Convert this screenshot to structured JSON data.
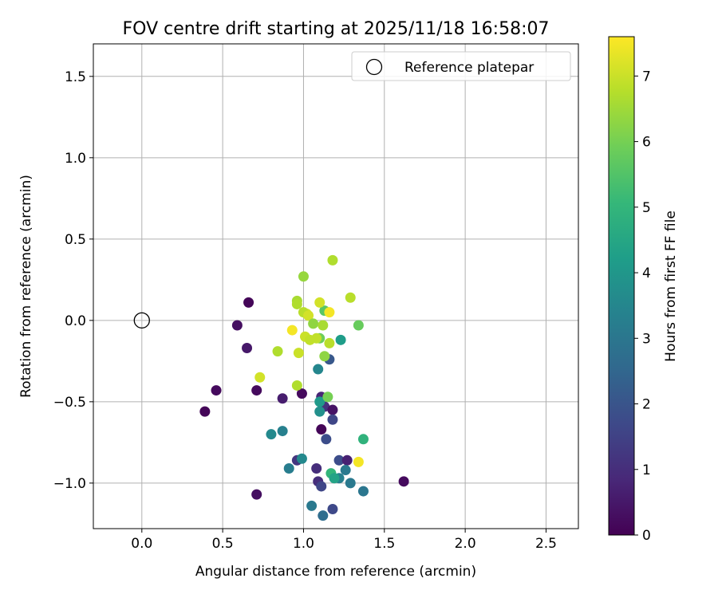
{
  "chart_data": {
    "type": "scatter",
    "title": "FOV centre drift starting at 2025/11/18 16:58:07",
    "xlabel": "Angular distance from reference (arcmin)",
    "ylabel": "Rotation from reference (arcmin)",
    "xlim": [
      -0.3,
      2.7
    ],
    "ylim": [
      -1.28,
      1.7
    ],
    "xticks": [
      0.0,
      0.5,
      1.0,
      1.5,
      2.0,
      2.5
    ],
    "xtick_labels": [
      "0.0",
      "0.5",
      "1.0",
      "1.5",
      "2.0",
      "2.5"
    ],
    "yticks": [
      -1.0,
      -0.5,
      0.0,
      0.5,
      1.0,
      1.5
    ],
    "ytick_labels": [
      "−1.0",
      "−0.5",
      "0.0",
      "0.5",
      "1.0",
      "1.5"
    ],
    "grid": true,
    "legend": {
      "position": "top-right",
      "entries": [
        {
          "label": "Reference platepar",
          "marker": "open-circle"
        }
      ]
    },
    "reference_point": {
      "x": 0.0,
      "y": 0.0
    },
    "colorbar": {
      "label": "Hours from first FF file",
      "min": 0,
      "max": 7.6,
      "colormap": "viridis",
      "ticks": [
        0,
        1,
        2,
        3,
        4,
        5,
        6,
        7
      ],
      "tick_labels": [
        "0",
        "1",
        "2",
        "3",
        "4",
        "5",
        "6",
        "7"
      ]
    },
    "points": [
      {
        "x": 0.66,
        "y": 0.11,
        "h": 0.1
      },
      {
        "x": 0.59,
        "y": -0.03,
        "h": 0.3
      },
      {
        "x": 0.65,
        "y": -0.17,
        "h": 0.5
      },
      {
        "x": 0.46,
        "y": -0.43,
        "h": 0.2
      },
      {
        "x": 0.39,
        "y": -0.56,
        "h": 0.1
      },
      {
        "x": 0.71,
        "y": -0.43,
        "h": 0.2
      },
      {
        "x": 0.87,
        "y": -0.48,
        "h": 0.6
      },
      {
        "x": 0.99,
        "y": -0.45,
        "h": 0.2
      },
      {
        "x": 0.71,
        "y": -1.07,
        "h": 0.3
      },
      {
        "x": 1.62,
        "y": -0.99,
        "h": 0.2
      },
      {
        "x": 1.11,
        "y": -0.67,
        "h": 0.1
      },
      {
        "x": 1.11,
        "y": -0.47,
        "h": 0.8
      },
      {
        "x": 1.13,
        "y": -0.53,
        "h": 1.1
      },
      {
        "x": 1.18,
        "y": -0.55,
        "h": 0.4
      },
      {
        "x": 1.18,
        "y": -0.61,
        "h": 1.6
      },
      {
        "x": 1.14,
        "y": -0.73,
        "h": 1.8
      },
      {
        "x": 0.96,
        "y": -0.86,
        "h": 1.2
      },
      {
        "x": 1.08,
        "y": -0.91,
        "h": 1.0
      },
      {
        "x": 1.09,
        "y": -0.99,
        "h": 1.0
      },
      {
        "x": 1.11,
        "y": -1.02,
        "h": 1.6
      },
      {
        "x": 1.22,
        "y": -0.86,
        "h": 1.8
      },
      {
        "x": 1.27,
        "y": -0.86,
        "h": 0.7
      },
      {
        "x": 1.18,
        "y": -1.16,
        "h": 1.7
      },
      {
        "x": 1.05,
        "y": -1.14,
        "h": 3.1
      },
      {
        "x": 1.12,
        "y": -1.2,
        "h": 2.7
      },
      {
        "x": 1.22,
        "y": -0.97,
        "h": 3.3
      },
      {
        "x": 1.26,
        "y": -0.92,
        "h": 3.1
      },
      {
        "x": 1.29,
        "y": -1.0,
        "h": 3.1
      },
      {
        "x": 1.37,
        "y": -1.05,
        "h": 3.0
      },
      {
        "x": 0.91,
        "y": -0.91,
        "h": 3.2
      },
      {
        "x": 0.8,
        "y": -0.7,
        "h": 3.6
      },
      {
        "x": 0.87,
        "y": -0.68,
        "h": 3.3
      },
      {
        "x": 0.99,
        "y": -0.85,
        "h": 3.6
      },
      {
        "x": 1.09,
        "y": -0.3,
        "h": 3.5
      },
      {
        "x": 1.1,
        "y": -0.5,
        "h": 4.1
      },
      {
        "x": 1.1,
        "y": -0.56,
        "h": 3.8
      },
      {
        "x": 1.16,
        "y": -0.24,
        "h": 2.1
      },
      {
        "x": 1.23,
        "y": -0.12,
        "h": 4.2
      },
      {
        "x": 1.37,
        "y": -0.73,
        "h": 4.9
      },
      {
        "x": 1.17,
        "y": -0.94,
        "h": 5.0
      },
      {
        "x": 1.19,
        "y": -0.97,
        "h": 4.4
      },
      {
        "x": 1.15,
        "y": -0.47,
        "h": 6.0
      },
      {
        "x": 1.1,
        "y": -0.11,
        "h": 5.9
      },
      {
        "x": 1.13,
        "y": 0.06,
        "h": 5.6
      },
      {
        "x": 1.34,
        "y": -0.03,
        "h": 5.8
      },
      {
        "x": 1.0,
        "y": 0.27,
        "h": 6.4
      },
      {
        "x": 1.18,
        "y": 0.37,
        "h": 6.7
      },
      {
        "x": 1.29,
        "y": 0.14,
        "h": 6.8
      },
      {
        "x": 0.96,
        "y": 0.12,
        "h": 6.6
      },
      {
        "x": 0.96,
        "y": 0.1,
        "h": 6.7
      },
      {
        "x": 1.02,
        "y": 0.04,
        "h": 7.1
      },
      {
        "x": 1.0,
        "y": 0.05,
        "h": 6.8
      },
      {
        "x": 1.03,
        "y": 0.03,
        "h": 7.1
      },
      {
        "x": 1.06,
        "y": -0.02,
        "h": 6.3
      },
      {
        "x": 1.1,
        "y": 0.11,
        "h": 7.1
      },
      {
        "x": 1.12,
        "y": -0.03,
        "h": 6.6
      },
      {
        "x": 1.16,
        "y": 0.05,
        "h": 7.5
      },
      {
        "x": 0.93,
        "y": -0.06,
        "h": 7.5
      },
      {
        "x": 1.01,
        "y": -0.1,
        "h": 7.0
      },
      {
        "x": 1.04,
        "y": -0.12,
        "h": 6.9
      },
      {
        "x": 1.08,
        "y": -0.11,
        "h": 6.9
      },
      {
        "x": 1.16,
        "y": -0.14,
        "h": 6.8
      },
      {
        "x": 0.84,
        "y": -0.19,
        "h": 6.7
      },
      {
        "x": 0.97,
        "y": -0.2,
        "h": 7.0
      },
      {
        "x": 1.13,
        "y": -0.22,
        "h": 6.3
      },
      {
        "x": 0.73,
        "y": -0.35,
        "h": 7.1
      },
      {
        "x": 0.96,
        "y": -0.4,
        "h": 6.7
      },
      {
        "x": 1.34,
        "y": -0.87,
        "h": 7.5
      }
    ]
  }
}
